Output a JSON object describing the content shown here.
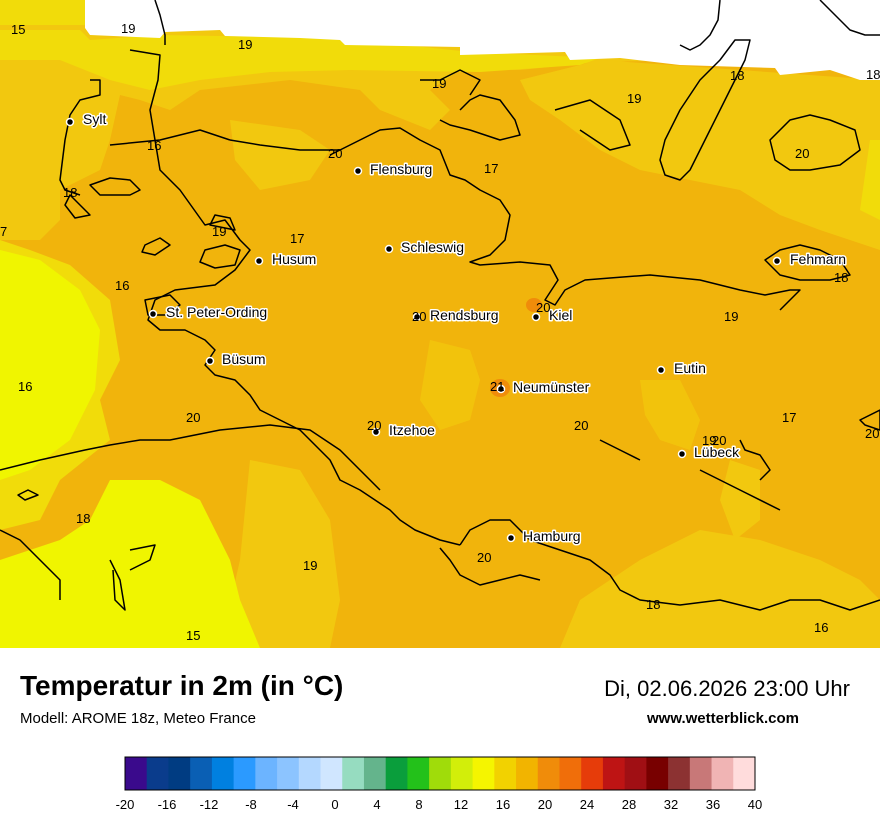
{
  "title": "Temperatur in 2m (in °C)",
  "model": "Modell: AROME 18z, Meteo France",
  "datetime": "Di, 02.06.2026 23:00 Uhr",
  "website": "www.wetterblick.com",
  "cities": [
    {
      "name": "Sylt"
    },
    {
      "name": "Flensburg"
    },
    {
      "name": "Schleswig"
    },
    {
      "name": "Husum"
    },
    {
      "name": "St. Peter-Ording"
    },
    {
      "name": "Büsum"
    },
    {
      "name": "Rendsburg"
    },
    {
      "name": "Kiel"
    },
    {
      "name": "Fehmarn"
    },
    {
      "name": "Eutin"
    },
    {
      "name": "Neumünster"
    },
    {
      "name": "Itzehoe"
    },
    {
      "name": "Lübeck"
    },
    {
      "name": "Hamburg"
    }
  ],
  "values": [
    "15",
    "19",
    "19",
    "19",
    "19",
    "18",
    "18",
    "16",
    "20",
    "17",
    "20",
    "18",
    "19",
    "17",
    "16",
    "19",
    "20",
    "20",
    "21",
    "20",
    "19",
    "16",
    "20",
    "20",
    "20",
    "17",
    "20",
    "18",
    "19",
    "20",
    "18",
    "15",
    "16"
  ],
  "legend": {
    "ticks": [
      "-20",
      "-16",
      "-12",
      "-8",
      "-4",
      "0",
      "4",
      "8",
      "12",
      "16",
      "20",
      "24",
      "28",
      "32",
      "36",
      "40"
    ],
    "colors": [
      "#3a0a8c",
      "#0a3c8c",
      "#003c82",
      "#0a5fb4",
      "#0080e0",
      "#2b9aff",
      "#6cb4ff",
      "#8cc4ff",
      "#b4d8ff",
      "#d0e6ff",
      "#96dcc0",
      "#64b48c",
      "#0a9e3c",
      "#23c11a",
      "#a0dc0a",
      "#d2ee0a",
      "#f5f500",
      "#f2d200",
      "#f2b400",
      "#f08c0a",
      "#f06e0a",
      "#e63c0a",
      "#be1414",
      "#a00f14",
      "#780000",
      "#8c3232",
      "#c87878",
      "#f0b4b4",
      "#ffdcdc"
    ]
  },
  "colors": {
    "zone15": "#f0f500",
    "zone16": "#f1dc0a",
    "zone18": "#f2c30c",
    "zone19": "#f1b40c",
    "zone21": "#f08c0a"
  }
}
